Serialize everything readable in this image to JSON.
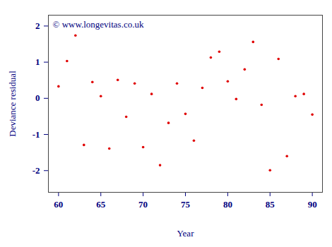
{
  "chart_data": {
    "type": "scatter",
    "x_label": "Year",
    "y_label": "Deviance residual",
    "annotation": "© www.longevitas.co.uk",
    "x": [
      60,
      61,
      62,
      63,
      64,
      65,
      66,
      67,
      68,
      69,
      70,
      71,
      72,
      73,
      74,
      75,
      76,
      77,
      78,
      79,
      80,
      81,
      82,
      83,
      84,
      85,
      86,
      87,
      88,
      89,
      90
    ],
    "values": [
      0.33,
      1.03,
      1.74,
      -1.29,
      0.45,
      0.06,
      -1.39,
      0.51,
      -0.51,
      0.41,
      -1.35,
      0.12,
      -1.85,
      -0.68,
      0.41,
      -0.43,
      -1.17,
      0.29,
      1.13,
      1.29,
      0.47,
      -0.02,
      0.8,
      1.56,
      -0.18,
      -1.99,
      1.09,
      -1.6,
      0.06,
      0.12,
      -0.45
    ],
    "color": "#e00000",
    "marker": "dot",
    "xlim": [
      58.8,
      91.2
    ],
    "xticks": [
      60,
      65,
      70,
      75,
      80,
      85,
      90
    ],
    "ylim": [
      -2.6,
      2.3
    ],
    "yticks": [
      -2,
      -1,
      0,
      1,
      2
    ],
    "grid": false
  }
}
